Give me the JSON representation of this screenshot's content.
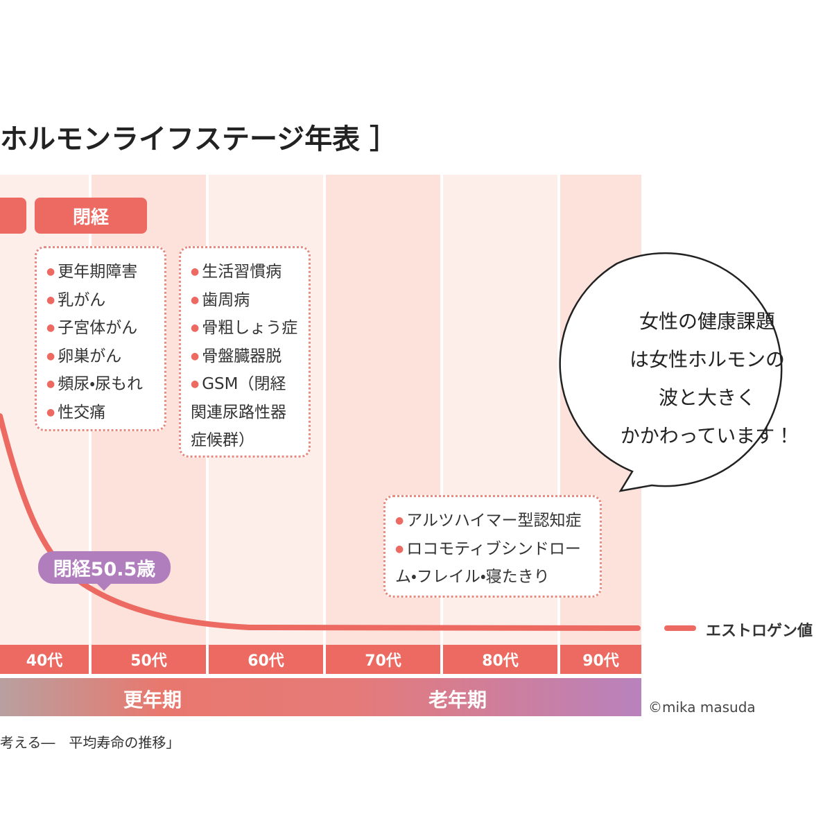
{
  "title": "ホルモンライフステージ年表 ］",
  "top_label": "閉経",
  "box1": [
    "更年期障害",
    "乳がん",
    "子宮体がん",
    "卵巣がん",
    "頻尿・尿もれ",
    "性交痛"
  ],
  "box2": [
    "生活習慣病",
    "歯周病",
    "骨粗しょう症",
    "骨盤臓器脱",
    "GSM（閉経関連尿路性器症候群）"
  ],
  "box3": [
    "アルツハイマー型認知症",
    "ロコモティブシンドローム・フレイル・寝たきり"
  ],
  "bubble": [
    "女性の健康課題",
    "は女性ホルモンの",
    "波と大きく",
    "かかわっています！"
  ],
  "annotation": "閉経50.5歳",
  "legend": "エストロゲン値",
  "decades": [
    "40代",
    "50代",
    "60代",
    "70代",
    "80代",
    "90代"
  ],
  "stages": [
    "更年期",
    "老年期"
  ],
  "credit": "©mika masuda",
  "source": "考える―　平均寿命の推移」"
}
